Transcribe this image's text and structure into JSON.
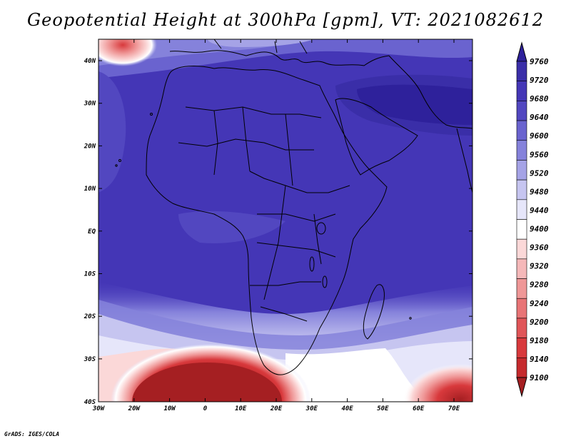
{
  "title": "Geopotential Height at 300hPa [gpm], VT: 2021082612",
  "credit": "GrADS: IGES/COLA",
  "lat_labels": [
    "40N",
    "30N",
    "20N",
    "10N",
    "EQ",
    "10S",
    "20S",
    "30S",
    "40S"
  ],
  "lon_labels": [
    "30W",
    "20W",
    "10W",
    "0",
    "10E",
    "20E",
    "30E",
    "40E",
    "50E",
    "60E",
    "70E"
  ],
  "colorbar": {
    "levels": [
      "9760",
      "9720",
      "9680",
      "9640",
      "9600",
      "9560",
      "9520",
      "9480",
      "9440",
      "9400",
      "9360",
      "9320",
      "9280",
      "9240",
      "9200",
      "9180",
      "9140",
      "9100"
    ],
    "colors": [
      "#2e219b",
      "#3a2ea8",
      "#4436b6",
      "#5247c0",
      "#6a63cf",
      "#8582db",
      "#a5a3e6",
      "#c6c5f0",
      "#e6e6fa",
      "#ffffff",
      "#fbd8d8",
      "#f5b8b9",
      "#ef9797",
      "#e87476",
      "#e05558",
      "#d8393c",
      "#c52a2d",
      "#a51f22"
    ]
  }
}
